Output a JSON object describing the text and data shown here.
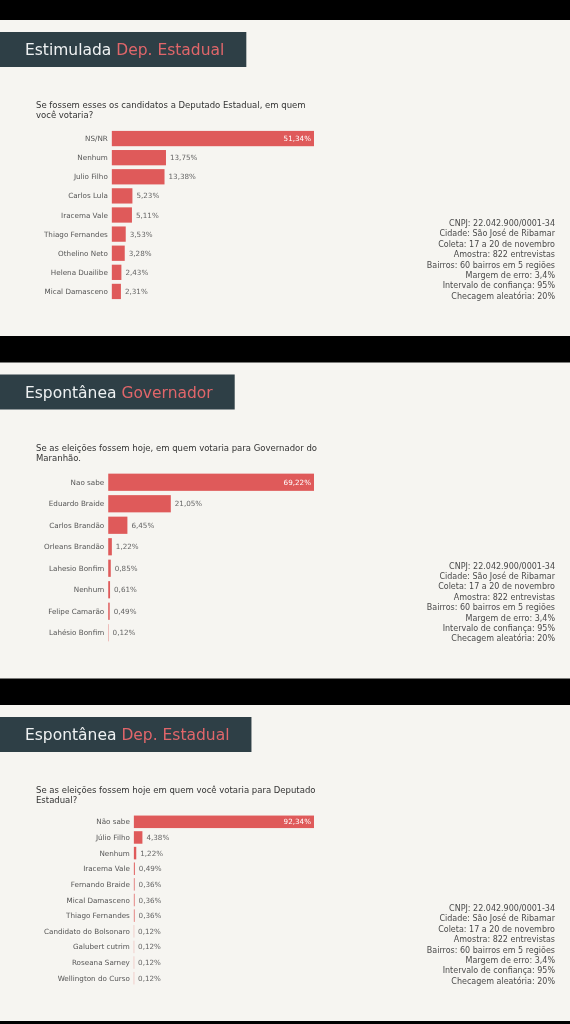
{
  "chart_data": [
    {
      "type": "bar",
      "orientation": "horizontal",
      "title": "Estimulada Dep. Estadual",
      "subtitle": "Se fossem esses os candidatos a Deputado Estadual, em quem você votaria?",
      "categories": [
        "NS/NR",
        "Nenhum",
        "Julio Filho",
        "Carlos Lula",
        "Iracema Vale",
        "Thiago Fernandes",
        "Othelino Neto",
        "Helena Duailibe",
        "Mical Damasceno"
      ],
      "values": [
        51.34,
        13.75,
        13.38,
        5.23,
        5.11,
        3.53,
        3.28,
        2.43,
        2.31
      ],
      "value_labels": [
        "51,34%",
        "13,75%",
        "13,38%",
        "5,23%",
        "5,11%",
        "3,53%",
        "3,28%",
        "2,43%",
        "2,31%"
      ],
      "color": "#df5a5a",
      "annotations": [
        "CNPJ: 22.042.900/0001-34",
        "Cidade: São José de Ribamar",
        "Coleta: 17 a 20 de novembro",
        "Amostra: 822 entrevistas",
        "Bairros: 60 bairros em 5 regiões",
        "Margem de erro: 3,4%",
        "Intervalo de confiança: 95%",
        "Checagem aleatória: 20%"
      ]
    },
    {
      "type": "bar",
      "orientation": "horizontal",
      "title": "Espontânea Governador",
      "subtitle": "Se as eleições fossem hoje, em quem votaria para Governador do Maranhão.",
      "categories": [
        "Nao sabe",
        "Eduardo Braide",
        "Carlos Brandão",
        "Orleans Brandão",
        "Lahesio Bonfim",
        "Nenhum",
        "Felipe Camarão",
        "Lahésio Bonfim"
      ],
      "values": [
        69.22,
        21.05,
        6.45,
        1.22,
        0.85,
        0.61,
        0.49,
        0.12
      ],
      "value_labels": [
        "69,22%",
        "21,05%",
        "6,45%",
        "1,22%",
        "0,85%",
        "0,61%",
        "0,49%",
        "0,12%"
      ],
      "color": "#df5a5a",
      "annotations": [
        "CNPJ: 22.042.900/0001-34",
        "Cidade: São José de Ribamar",
        "Coleta: 17 a 20 de novembro",
        "Amostra: 822 entrevistas",
        "Bairros: 60 bairros em 5 regiões",
        "Margem de erro: 3,4%",
        "Intervalo de confiança: 95%",
        "Checagem aleatória: 20%"
      ]
    },
    {
      "type": "bar",
      "orientation": "horizontal",
      "title": "Espontânea Dep. Estadual",
      "subtitle": "Se as eleições fossem hoje em quem você votaria para Deputado Estadual?",
      "categories": [
        "Não sabe",
        "Júlio Filho",
        "Nenhum",
        "Iracema Vale",
        "Fernando Braide",
        "Mical Damasceno",
        "Thiago Fernandes",
        "Candidato do Bolsonaro",
        "Galubert cutrim",
        "Roseana Sarney",
        "Wellington do Curso"
      ],
      "values": [
        92.34,
        4.38,
        1.22,
        0.49,
        0.36,
        0.36,
        0.36,
        0.12,
        0.12,
        0.12,
        0.12
      ],
      "value_labels": [
        "92,34%",
        "4,38%",
        "1,22%",
        "0,49%",
        "0,36%",
        "0,36%",
        "0,36%",
        "0,12%",
        "0,12%",
        "0,12%",
        "0,12%"
      ],
      "color": "#df5a5a",
      "annotations": [
        "CNPJ: 22.042.900/0001-34",
        "Cidade: São José de Ribamar",
        "Coleta: 17 a 20 de novembro",
        "Amostra: 822 entrevistas",
        "Bairros: 60 bairros em 5 regiões",
        "Margem de erro: 3,4%",
        "Intervalo de confiança: 95%",
        "Checagem aleatória: 20%"
      ]
    }
  ]
}
